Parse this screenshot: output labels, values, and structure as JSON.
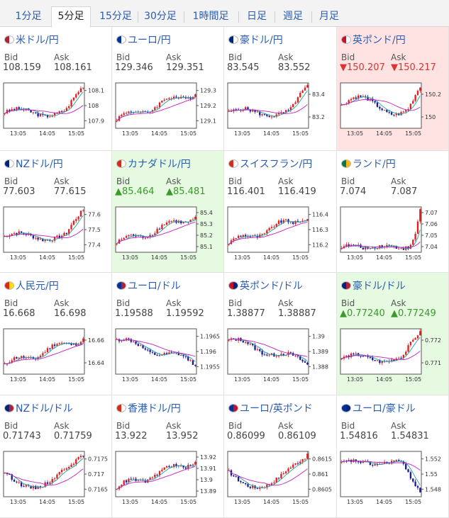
{
  "tabs": [
    {
      "label": "1分足",
      "active": false
    },
    {
      "label": "5分足",
      "active": true
    },
    {
      "label": "15分足",
      "active": false
    },
    {
      "label": "30分足",
      "active": false
    },
    {
      "label": "1時間足",
      "active": false
    },
    {
      "label": "日足",
      "active": false
    },
    {
      "label": "週足",
      "active": false
    },
    {
      "label": "月足",
      "active": false
    }
  ],
  "bid_label": "Bid",
  "ask_label": "Ask",
  "x_ticks": [
    "13:05",
    "14:05",
    "15:05"
  ],
  "pairs": [
    {
      "name": "米ドル/円",
      "bid": "108.159",
      "ask": "108.161",
      "state": "normal",
      "flag": [
        "#b22234",
        "#ffffff"
      ],
      "yticks": [
        "108.1",
        "108",
        "107.9"
      ],
      "trend": "up-late"
    },
    {
      "name": "ユーロ/円",
      "bid": "129.346",
      "ask": "129.351",
      "state": "normal",
      "flag": [
        "#003399",
        "#ffffff"
      ],
      "yticks": [
        "129.3",
        "129.2",
        "129.1"
      ],
      "trend": "up"
    },
    {
      "name": "豪ドル/円",
      "bid": "83.545",
      "ask": "83.552",
      "state": "normal",
      "flag": [
        "#00247d",
        "#ffffff"
      ],
      "yticks": [
        "83.4",
        "83.2"
      ],
      "trend": "up-late"
    },
    {
      "name": "英ポンド/円",
      "bid": "▼150.207",
      "ask": "▼150.217",
      "state": "down",
      "flag": [
        "#c8102e",
        "#ffffff"
      ],
      "yticks": [
        "150.2",
        "150"
      ],
      "trend": "wave"
    },
    {
      "name": "NZドル/円",
      "bid": "77.603",
      "ask": "77.615",
      "state": "normal",
      "flag": [
        "#00247d",
        "#ffffff"
      ],
      "yticks": [
        "77.6",
        "77.5",
        "77.4"
      ],
      "trend": "up-late"
    },
    {
      "name": "カナダドル/円",
      "bid": "▲85.464",
      "ask": "▲85.481",
      "state": "up",
      "flag": [
        "#d52b1e",
        "#ffffff"
      ],
      "yticks": [
        "85.4",
        "85.3",
        "85.2",
        "85.1"
      ],
      "trend": "up"
    },
    {
      "name": "スイスフラン/円",
      "bid": "116.401",
      "ask": "116.419",
      "state": "normal",
      "flag": [
        "#d52b1e",
        "#ffffff"
      ],
      "yticks": [
        "116.4",
        "116.3",
        "116.2"
      ],
      "trend": "up"
    },
    {
      "name": "ランド/円",
      "bid": "7.074",
      "ask": "7.087",
      "state": "normal",
      "flag": [
        "#007a4d",
        "#ffb612"
      ],
      "yticks": [
        "7.07",
        "7.06",
        "7.05",
        "7.04"
      ],
      "trend": "spike"
    },
    {
      "name": "人民元/円",
      "bid": "16.668",
      "ask": "16.698",
      "state": "normal",
      "flag": [
        "#de2910",
        "#ffde00"
      ],
      "yticks": [
        "16.66",
        "16.64"
      ],
      "trend": "up"
    },
    {
      "name": "ユーロ/ドル",
      "bid": "1.19588",
      "ask": "1.19592",
      "state": "normal",
      "flag": [
        "#003399",
        "#b22234"
      ],
      "yticks": [
        "1.1965",
        "1.196",
        "1.1955"
      ],
      "trend": "down"
    },
    {
      "name": "英ポンド/ドル",
      "bid": "1.38877",
      "ask": "1.38887",
      "state": "normal",
      "flag": [
        "#c8102e",
        "#00247d"
      ],
      "yticks": [
        "1.39",
        "1.389",
        "1.388"
      ],
      "trend": "down"
    },
    {
      "name": "豪ドル/ドル",
      "bid": "▲0.77240",
      "ask": "▲0.77249",
      "state": "up",
      "flag": [
        "#00247d",
        "#b22234"
      ],
      "yticks": [
        "0.772",
        "0.771"
      ],
      "trend": "up-late"
    },
    {
      "name": "NZドル/ドル",
      "bid": "0.71743",
      "ask": "0.71759",
      "state": "normal",
      "flag": [
        "#00247d",
        "#b22234"
      ],
      "yticks": [
        "0.7175",
        "0.717",
        "0.7165"
      ],
      "trend": "vshape"
    },
    {
      "name": "香港ドル/円",
      "bid": "13.922",
      "ask": "13.952",
      "state": "normal",
      "flag": [
        "#de2910",
        "#ffffff"
      ],
      "yticks": [
        "13.92",
        "13.91",
        "13.9",
        "13.89"
      ],
      "trend": "up"
    },
    {
      "name": "ユーロ/英ポンド",
      "bid": "0.86099",
      "ask": "0.86109",
      "state": "normal",
      "flag": [
        "#003399",
        "#c8102e"
      ],
      "yticks": [
        "0.8615",
        "0.861",
        "0.8605"
      ],
      "trend": "vshape"
    },
    {
      "name": "ユーロ/豪ドル",
      "bid": "1.54816",
      "ask": "1.54831",
      "state": "normal",
      "flag": [
        "#003399",
        "#00247d"
      ],
      "yticks": [
        "1.552",
        "1.55",
        "1.548"
      ],
      "trend": "down-late"
    }
  ],
  "colors": {
    "link": "#2a5db0",
    "down_bg": "#ffe3e3",
    "up_bg": "#e5fae1",
    "candle_up": "#e02020",
    "candle_down": "#1a1a99",
    "sma_short": "#20a0a0",
    "sma_long": "#c020c0"
  }
}
